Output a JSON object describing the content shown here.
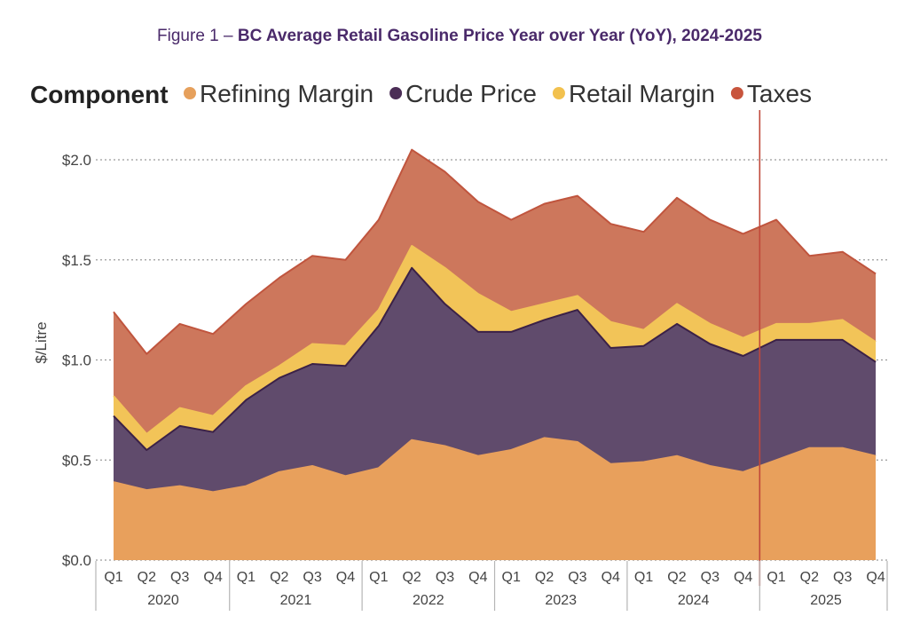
{
  "caption": {
    "prefix": "Figure 1 – ",
    "title": "BC Average Retail Gasoline Price Year over Year (YoY), 2024-2025"
  },
  "chart_data": {
    "type": "area",
    "stacked": true,
    "ylabel": "$/Litre",
    "ylim": [
      0,
      2.0
    ],
    "yticks": [
      {
        "value": 0.0,
        "label": "$0.0"
      },
      {
        "value": 0.5,
        "label": "$0.5"
      },
      {
        "value": 1.0,
        "label": "$1.0"
      },
      {
        "value": 1.5,
        "label": "$1.5"
      },
      {
        "value": 2.0,
        "label": "$2.0"
      }
    ],
    "legend": {
      "title": "Component",
      "position": "top-left",
      "items": [
        {
          "name": "Refining Margin",
          "color": "#E6A05C"
        },
        {
          "name": "Crude Price",
          "color": "#4B2D56"
        },
        {
          "name": "Retail Margin",
          "color": "#F2C14E"
        },
        {
          "name": "Taxes",
          "color": "#C8553D"
        }
      ]
    },
    "quarters": [
      "Q1",
      "Q2",
      "Q3",
      "Q4",
      "Q1",
      "Q2",
      "Q3",
      "Q4",
      "Q1",
      "Q2",
      "Q3",
      "Q4",
      "Q1",
      "Q2",
      "Q3",
      "Q4",
      "Q1",
      "Q2",
      "Q3",
      "Q4",
      "Q1",
      "Q2",
      "Q3",
      "Q4"
    ],
    "years": [
      "2020",
      "2021",
      "2022",
      "2023",
      "2024",
      "2025"
    ],
    "series": [
      {
        "name": "Refining Margin",
        "fill": "#E8A05C",
        "line": "#E8A05C",
        "values": [
          0.39,
          0.35,
          0.37,
          0.34,
          0.37,
          0.44,
          0.47,
          0.42,
          0.46,
          0.6,
          0.57,
          0.52,
          0.55,
          0.61,
          0.59,
          0.48,
          0.49,
          0.52,
          0.47,
          0.44,
          0.5,
          0.56,
          0.56,
          0.52
        ]
      },
      {
        "name": "Crude Price",
        "fill": "#604B6C",
        "line": "#3B2147",
        "values": [
          0.33,
          0.2,
          0.3,
          0.3,
          0.43,
          0.47,
          0.51,
          0.55,
          0.71,
          0.86,
          0.71,
          0.62,
          0.59,
          0.59,
          0.66,
          0.58,
          0.58,
          0.66,
          0.61,
          0.58,
          0.6,
          0.54,
          0.54,
          0.47
        ]
      },
      {
        "name": "Retail Margin",
        "fill": "#F2C458",
        "line": "#F2C458",
        "values": [
          0.1,
          0.08,
          0.09,
          0.08,
          0.07,
          0.06,
          0.1,
          0.1,
          0.08,
          0.11,
          0.18,
          0.19,
          0.1,
          0.08,
          0.07,
          0.13,
          0.08,
          0.1,
          0.1,
          0.09,
          0.08,
          0.08,
          0.1,
          0.1
        ]
      },
      {
        "name": "Taxes",
        "fill": "#CD775C",
        "line": "#C0553E",
        "values": [
          0.42,
          0.4,
          0.42,
          0.41,
          0.41,
          0.44,
          0.44,
          0.43,
          0.45,
          0.48,
          0.48,
          0.46,
          0.46,
          0.5,
          0.5,
          0.49,
          0.49,
          0.53,
          0.52,
          0.52,
          0.52,
          0.34,
          0.34,
          0.34
        ]
      }
    ],
    "marker_before_quarter_index": 20,
    "marker_color": "#C0483A",
    "grid": true
  }
}
